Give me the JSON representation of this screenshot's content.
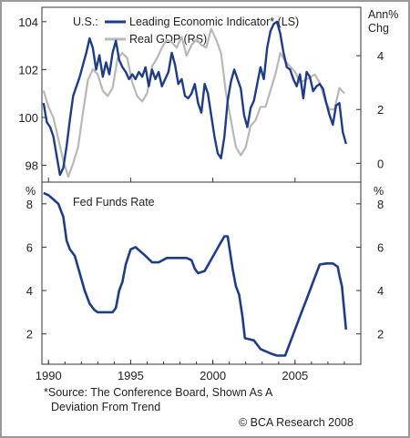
{
  "chart_data": [
    {
      "type": "line",
      "region_label": "U.S.:",
      "left_axis_unit": "",
      "right_axis_unit": "Ann%\nChg",
      "x_range": [
        1989.6,
        2009.0
      ],
      "left_ylim": [
        97.3,
        104.6
      ],
      "right_ylim": [
        -0.7,
        5.8
      ],
      "left_ticks": [
        98,
        100,
        102,
        104
      ],
      "right_ticks": [
        0,
        2,
        4
      ],
      "grid": false,
      "legend_position": "top-left",
      "colors": {
        "lei": "#1f3c88",
        "gdp": "#b8b8b8"
      },
      "series": [
        {
          "name": "Leading Economic Indicator* (LS)",
          "axis": "left",
          "x": [
            1989.7,
            1989.9,
            1990.1,
            1990.3,
            1990.5,
            1990.7,
            1990.9,
            1991.1,
            1991.3,
            1991.5,
            1991.7,
            1991.9,
            1992.1,
            1992.3,
            1992.5,
            1992.7,
            1992.9,
            1993.1,
            1993.3,
            1993.5,
            1993.7,
            1993.9,
            1994.1,
            1994.3,
            1994.5,
            1994.7,
            1994.9,
            1995.1,
            1995.3,
            1995.5,
            1995.7,
            1995.9,
            1996.1,
            1996.3,
            1996.5,
            1996.7,
            1996.9,
            1997.1,
            1997.3,
            1997.5,
            1997.7,
            1997.9,
            1998.1,
            1998.3,
            1998.5,
            1998.7,
            1998.9,
            1999.1,
            1999.3,
            1999.5,
            1999.7,
            1999.9,
            2000.1,
            2000.3,
            2000.5,
            2000.7,
            2000.9,
            2001.1,
            2001.3,
            2001.5,
            2001.7,
            2001.9,
            2002.1,
            2002.3,
            2002.5,
            2002.7,
            2002.9,
            2003.1,
            2003.3,
            2003.5,
            2003.7,
            2003.9,
            2004.1,
            2004.3,
            2004.5,
            2004.7,
            2004.9,
            2005.1,
            2005.3,
            2005.5,
            2005.7,
            2005.9,
            2006.1,
            2006.3,
            2006.5,
            2006.7,
            2006.9,
            2007.1,
            2007.3,
            2007.5,
            2007.7,
            2007.9,
            2008.1
          ],
          "values": [
            100.6,
            99.8,
            99.6,
            99.2,
            98.4,
            97.6,
            97.9,
            98.8,
            99.9,
            100.9,
            101.3,
            101.7,
            102.2,
            102.7,
            103.3,
            102.9,
            102.0,
            102.6,
            101.7,
            102.3,
            101.8,
            102.7,
            103.2,
            102.4,
            102.1,
            101.9,
            101.6,
            101.8,
            101.6,
            101.9,
            101.7,
            102.1,
            101.3,
            102.0,
            101.6,
            101.9,
            101.3,
            101.6,
            101.9,
            102.7,
            102.2,
            101.4,
            101.6,
            100.9,
            100.8,
            101.0,
            101.4,
            100.6,
            100.2,
            101.4,
            101.0,
            100.1,
            99.2,
            98.5,
            98.3,
            99.2,
            100.7,
            101.5,
            102.0,
            101.6,
            101.2,
            100.1,
            99.6,
            100.4,
            100.7,
            101.4,
            102.1,
            101.6,
            102.9,
            103.6,
            103.9,
            104.0,
            103.5,
            102.7,
            102.1,
            102.0,
            101.6,
            101.3,
            101.8,
            100.8,
            101.9,
            101.7,
            101.1,
            101.3,
            101.4,
            101.2,
            100.6,
            100.1,
            99.7,
            100.5,
            100.6,
            99.4,
            98.9
          ]
        },
        {
          "name": "Real GDP (RS)",
          "axis": "right",
          "x": [
            1989.7,
            1990.0,
            1990.3,
            1990.6,
            1990.9,
            1991.2,
            1991.5,
            1991.8,
            1992.1,
            1992.4,
            1992.7,
            1993.0,
            1993.3,
            1993.6,
            1993.9,
            1994.2,
            1994.5,
            1994.8,
            1995.1,
            1995.4,
            1995.7,
            1996.0,
            1996.3,
            1996.6,
            1996.9,
            1997.2,
            1997.5,
            1997.8,
            1998.1,
            1998.4,
            1998.7,
            1999.0,
            1999.3,
            1999.6,
            1999.9,
            2000.2,
            2000.5,
            2000.8,
            2001.1,
            2001.4,
            2001.7,
            2002.0,
            2002.3,
            2002.6,
            2002.9,
            2003.2,
            2003.5,
            2003.8,
            2004.1,
            2004.4,
            2004.7,
            2005.0,
            2005.3,
            2005.6,
            2005.9,
            2006.2,
            2006.5,
            2006.8,
            2007.1,
            2007.4,
            2007.7,
            2008.0
          ],
          "values": [
            2.7,
            2.1,
            1.7,
            0.9,
            0.1,
            -0.5,
            0.0,
            0.6,
            1.9,
            3.1,
            3.5,
            3.3,
            2.7,
            2.5,
            2.8,
            3.9,
            4.1,
            3.9,
            3.0,
            2.5,
            2.3,
            2.6,
            3.6,
            3.9,
            4.3,
            4.6,
            4.5,
            4.3,
            4.7,
            4.0,
            4.4,
            4.6,
            4.4,
            4.3,
            5.0,
            4.6,
            4.1,
            2.6,
            1.6,
            0.6,
            0.3,
            0.6,
            1.4,
            1.6,
            2.1,
            2.1,
            2.7,
            3.3,
            4.1,
            3.8,
            3.6,
            3.4,
            3.0,
            3.1,
            3.2,
            3.3,
            3.0,
            2.4,
            2.0,
            2.0,
            2.8,
            2.6
          ]
        }
      ]
    },
    {
      "type": "line",
      "left_axis_unit": "%",
      "right_axis_unit": "%",
      "x_range": [
        1989.6,
        2009.0
      ],
      "ylim": [
        0.6,
        9.0
      ],
      "y_ticks": [
        2,
        4,
        6,
        8
      ],
      "grid": false,
      "colors": {
        "ffr": "#1f3c88"
      },
      "series": [
        {
          "name": "Fed Funds Rate",
          "x": [
            1989.7,
            1990.0,
            1990.3,
            1990.6,
            1990.9,
            1991.1,
            1991.3,
            1991.6,
            1991.9,
            1992.2,
            1992.5,
            1992.8,
            1993.0,
            1993.5,
            1993.9,
            1994.1,
            1994.3,
            1994.5,
            1994.7,
            1995.0,
            1995.3,
            1995.6,
            1995.9,
            1996.3,
            1996.7,
            1997.2,
            1997.6,
            1998.0,
            1998.4,
            1998.7,
            1998.9,
            1999.1,
            1999.5,
            1999.8,
            2000.1,
            2000.4,
            2000.7,
            2000.9,
            2001.0,
            2001.2,
            2001.4,
            2001.6,
            2001.8,
            2001.95,
            2002.5,
            2002.9,
            2003.2,
            2003.5,
            2003.9,
            2004.4,
            2004.6,
            2004.9,
            2005.3,
            2005.7,
            2006.1,
            2006.5,
            2006.9,
            2007.3,
            2007.6,
            2007.7,
            2007.85,
            2008.0,
            2008.1
          ],
          "values": [
            8.5,
            8.4,
            8.2,
            8.0,
            7.4,
            6.3,
            5.9,
            5.6,
            4.8,
            4.0,
            3.4,
            3.1,
            3.0,
            3.0,
            3.0,
            3.2,
            4.0,
            4.4,
            5.2,
            5.9,
            6.0,
            5.8,
            5.6,
            5.3,
            5.3,
            5.5,
            5.5,
            5.5,
            5.5,
            5.4,
            5.0,
            4.8,
            4.9,
            5.3,
            5.7,
            6.1,
            6.5,
            6.5,
            6.0,
            5.0,
            4.2,
            3.8,
            2.8,
            1.8,
            1.7,
            1.3,
            1.2,
            1.1,
            1.0,
            1.0,
            1.4,
            2.0,
            2.8,
            3.6,
            4.4,
            5.2,
            5.25,
            5.25,
            5.1,
            4.7,
            4.2,
            3.0,
            2.2
          ]
        }
      ]
    }
  ],
  "x_ticks": [
    1990,
    1995,
    2000,
    2005
  ],
  "footnote": [
    "*Source: The Conference Board, Shown As A",
    "Deviation From Trend"
  ],
  "copyright": "© BCA Research 2008"
}
